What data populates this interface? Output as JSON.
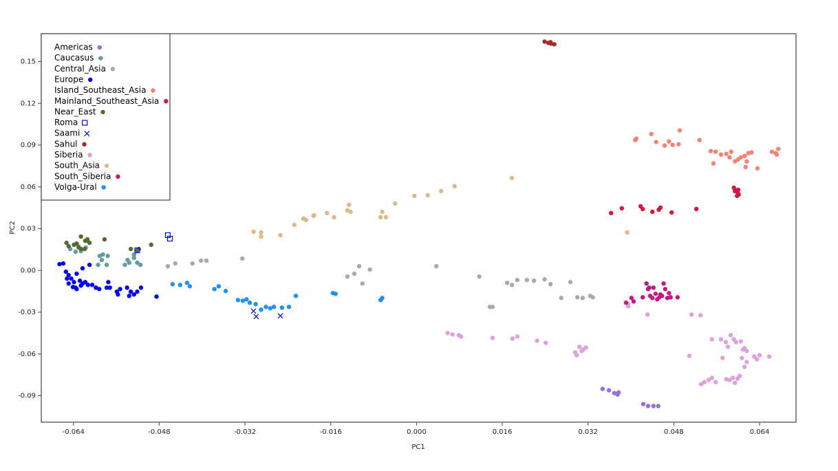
{
  "chart_data": {
    "type": "scatter",
    "x_label": "PC1",
    "y_label": "PC2",
    "xlim": [
      -0.07,
      0.0708
    ],
    "ylim": [
      -0.109,
      0.17
    ],
    "xticks": [
      -0.064,
      -0.048,
      -0.032,
      -0.016,
      {
        "value": 0,
        "label": "0.000"
      },
      0.016,
      0.032,
      0.048,
      0.064
    ],
    "yticks": [
      0.15,
      0.12,
      0.09,
      0.06,
      0.03,
      {
        "value": 0,
        "label": "0.00"
      },
      -0.03,
      -0.06,
      -0.09
    ],
    "legend": "upper left",
    "series": [
      {
        "name": "Americas",
        "color": "#9370db",
        "marker": "circle",
        "x": [
          0.0347,
          0.0359,
          0.0369,
          0.0375,
          0.0377,
          0.0423,
          0.0432,
          0.0442,
          0.0451
        ],
        "values": [
          -0.0851,
          -0.0861,
          -0.0881,
          -0.0891,
          -0.0876,
          -0.096,
          -0.0974,
          -0.0974,
          -0.0974
        ]
      },
      {
        "name": "Caucasus",
        "color": "#5f9ea0",
        "marker": "circle",
        "x": [
          -0.0646,
          -0.0636,
          -0.0626,
          -0.0617,
          -0.0631,
          -0.0594,
          -0.0587,
          -0.0578,
          -0.0591,
          -0.0585,
          -0.0576,
          -0.0544,
          -0.0536,
          -0.0527,
          -0.0521,
          -0.0515,
          -0.0539,
          -0.0527
        ],
        "values": [
          0.0154,
          0.0134,
          0.0139,
          0.0164,
          0.0174,
          0.004,
          0.0075,
          0.004,
          0.0104,
          0.0114,
          0.0104,
          0.004,
          0.0055,
          0.009,
          0.0055,
          0.004,
          0.0075,
          0.0114
        ]
      },
      {
        "name": "Central_Asia",
        "color": "#a9a9a9",
        "marker": "circle",
        "x": [
          -0.0464,
          -0.045,
          -0.0418,
          -0.0402,
          -0.0392,
          -0.0325,
          -0.0129,
          -0.0116,
          -0.0107,
          -0.0101,
          -0.0087,
          0.0037,
          0.0117,
          0.0137,
          0.0142,
          0.0169,
          0.0178,
          0.0188,
          0.0206,
          0.0219,
          0.0239,
          0.025,
          0.0287,
          0.027,
          0.03,
          0.031,
          0.0324,
          0.0329
        ],
        "values": [
          0.003,
          0.005,
          0.005,
          0.007,
          0.007,
          0.0085,
          -0.0044,
          -0.0024,
          0.003,
          -0.0094,
          0.0006,
          0.003,
          -0.0044,
          -0.0262,
          -0.0262,
          -0.0089,
          -0.0104,
          -0.0069,
          -0.0069,
          -0.0074,
          -0.0064,
          -0.0099,
          -0.0084,
          -0.0198,
          -0.0193,
          -0.0198,
          -0.0183,
          -0.0193
        ]
      },
      {
        "name": "Europe",
        "color": "#0000ff",
        "marker": "circle",
        "x": [
          -0.0666,
          -0.0659,
          -0.0654,
          -0.0649,
          -0.0644,
          -0.0639,
          -0.0634,
          -0.0628,
          -0.0623,
          -0.0618,
          -0.0613,
          -0.0605,
          -0.0598,
          -0.0592,
          -0.0649,
          -0.0641,
          -0.0634,
          -0.0626,
          -0.0652,
          -0.061,
          -0.0623,
          -0.0575,
          -0.0572,
          -0.0559,
          -0.0553,
          -0.054,
          -0.0533,
          -0.0527,
          -0.0521,
          -0.0514,
          -0.0536,
          -0.0557,
          -0.0485,
          -0.0578,
          -0.0636
        ],
        "values": [
          0.0045,
          0.005,
          -0.0009,
          -0.0034,
          -0.0059,
          -0.0084,
          -0.0024,
          -0.0074,
          -0.0094,
          -0.0084,
          -0.0104,
          -0.0104,
          -0.0124,
          -0.0134,
          -0.0094,
          -0.0119,
          -0.0134,
          -0.0109,
          -0.0059,
          0.004,
          0.0015,
          -0.0084,
          -0.0124,
          -0.0153,
          -0.0134,
          -0.0124,
          -0.0153,
          -0.0173,
          -0.0153,
          -0.0124,
          -0.0183,
          -0.0173,
          -0.0188,
          -0.0124,
          -0.0124
        ]
      },
      {
        "name": "Island_Southeast_Asia",
        "color": "#fa8072",
        "marker": "circle",
        "x": [
          0.0408,
          0.041,
          0.0438,
          0.0447,
          0.0463,
          0.0471,
          0.0478,
          0.0489,
          0.0491,
          0.0528,
          0.0549,
          0.0554,
          0.0558,
          0.0568,
          0.0578,
          0.0584,
          0.0587,
          0.0594,
          0.06,
          0.0605,
          0.0612,
          0.0616,
          0.0619,
          0.0625,
          0.0636,
          0.0663,
          0.067,
          0.0675,
          0.0672,
          0.0614
        ],
        "values": [
          0.0936,
          0.0946,
          0.098,
          0.0922,
          0.0897,
          0.0926,
          0.0902,
          0.0906,
          0.1005,
          0.0936,
          0.0857,
          0.0768,
          0.0852,
          0.0832,
          0.0837,
          0.0812,
          0.0852,
          0.0783,
          0.0797,
          0.0812,
          0.0822,
          0.0783,
          0.0842,
          0.0847,
          0.0733,
          0.0852,
          0.0842,
          0.0872,
          0.0832,
          0.0743
        ]
      },
      {
        "name": "Mainland_Southeast_Asia",
        "color": "#dc143c",
        "marker": "circle",
        "x": [
          0.0363,
          0.0383,
          0.0418,
          0.0422,
          0.044,
          0.0452,
          0.0455,
          0.0476,
          0.0522,
          0.0592,
          0.0596,
          0.0599,
          0.0601,
          0.0594,
          0.06,
          0.0598
        ],
        "values": [
          0.0412,
          0.0446,
          0.0461,
          0.0441,
          0.0421,
          0.0436,
          0.0451,
          0.0416,
          0.0441,
          0.0594,
          0.0575,
          0.056,
          0.0545,
          0.057,
          0.0579,
          0.0535
        ]
      },
      {
        "name": "Near_East",
        "color": "#556b2f",
        "marker": "circle",
        "x": [
          -0.0653,
          -0.0649,
          -0.0639,
          -0.0634,
          -0.0626,
          -0.0618,
          -0.0614,
          -0.061,
          -0.063,
          -0.0626,
          -0.0619,
          -0.0614,
          -0.0582,
          -0.0533,
          -0.0521,
          -0.0495,
          -0.0518
        ],
        "values": [
          0.0198,
          0.0174,
          0.0184,
          0.0193,
          0.0243,
          0.0213,
          0.0223,
          0.0198,
          0.0164,
          0.0154,
          0.0154,
          0.0213,
          0.0223,
          0.0154,
          0.0144,
          0.0184,
          0.0154
        ]
      },
      {
        "name": "Roma",
        "color": "#0000ff",
        "marker": "square",
        "x": [
          -0.0521,
          -0.0464,
          -0.046
        ],
        "values": [
          0.0144,
          0.0253,
          0.0228
        ]
      },
      {
        "name": "Saami",
        "color": "#0000ff",
        "marker": "x",
        "x": [
          -0.0304,
          -0.0299,
          -0.0254
        ],
        "values": [
          -0.0292,
          -0.0331,
          -0.0326
        ]
      },
      {
        "name": "Sahul",
        "color": "#a52a2a",
        "marker": "circle",
        "x": [
          0.0239,
          0.0246,
          0.0251,
          0.0257,
          0.025
        ],
        "values": [
          0.1643,
          0.1634,
          0.1629,
          0.1624,
          0.1639
        ]
      },
      {
        "name": "Siberia",
        "color": "#dda0dd",
        "marker": "circle",
        "x": [
          0.0058,
          0.0067,
          0.0079,
          0.0083,
          0.0142,
          0.0179,
          0.0188,
          0.0225,
          0.0241,
          0.0296,
          0.0304,
          0.0311,
          0.0316,
          0.0299,
          0.0308,
          0.0395,
          0.0395,
          0.0431,
          0.0513,
          0.053,
          0.0509,
          0.0531,
          0.0537,
          0.0545,
          0.0551,
          0.0558,
          0.0551,
          0.0568,
          0.0571,
          0.0577,
          0.0581,
          0.0586,
          0.0592,
          0.0596,
          0.0605,
          0.0612,
          0.0616,
          0.0607,
          0.0609,
          0.063,
          0.0635,
          0.064,
          0.0658,
          0.0584,
          0.059,
          0.0599,
          0.0594,
          0.0578,
          0.0603,
          0.0612,
          0.0616
        ],
        "values": [
          -0.045,
          -0.046,
          -0.0465,
          -0.0475,
          -0.0485,
          -0.049,
          -0.0475,
          -0.0505,
          -0.052,
          -0.0589,
          -0.0549,
          -0.0569,
          -0.0554,
          -0.0609,
          -0.0579,
          -0.0243,
          -0.0258,
          -0.0317,
          -0.0317,
          -0.0322,
          -0.0614,
          -0.0817,
          -0.0802,
          -0.0787,
          -0.0772,
          -0.0802,
          -0.0495,
          -0.0495,
          -0.0629,
          -0.0515,
          -0.0549,
          -0.0465,
          -0.0495,
          -0.0515,
          -0.051,
          -0.0559,
          -0.0579,
          -0.0629,
          -0.0569,
          -0.0619,
          -0.0638,
          -0.0609,
          -0.0619,
          -0.0787,
          -0.0772,
          -0.0777,
          -0.0807,
          -0.0782,
          -0.0757,
          -0.0693,
          -0.0658
        ]
      },
      {
        "name": "South_Asia",
        "color": "#deb887",
        "marker": "circle",
        "x": [
          -0.0304,
          -0.029,
          -0.029,
          -0.0254,
          -0.0228,
          -0.0211,
          -0.0206,
          -0.0192,
          -0.0191,
          -0.0167,
          -0.0154,
          -0.0129,
          -0.0126,
          -0.0123,
          -0.0067,
          -0.0064,
          -0.0057,
          -0.004,
          -0.0004,
          0.0021,
          0.0046,
          0.0071,
          0.0178,
          0.0393
        ],
        "values": [
          0.0278,
          0.0273,
          0.0243,
          0.0253,
          0.0327,
          0.0372,
          0.0362,
          0.0392,
          0.0396,
          0.0412,
          0.0382,
          0.0431,
          0.0471,
          0.0421,
          0.0382,
          0.0421,
          0.0382,
          0.0481,
          0.0535,
          0.054,
          0.057,
          0.0604,
          0.0664,
          0.0273
        ]
      },
      {
        "name": "South_Siberia",
        "color": "#c71585",
        "marker": "circle",
        "x": [
          0.0391,
          0.0401,
          0.0405,
          0.0422,
          0.0429,
          0.0432,
          0.0436,
          0.044,
          0.0442,
          0.0446,
          0.0449,
          0.0453,
          0.0458,
          0.0461,
          0.0464,
          0.0468,
          0.0471,
          0.0474,
          0.0487,
          0.0455,
          0.0434
        ],
        "values": [
          -0.0232,
          -0.0198,
          -0.0223,
          -0.0193,
          -0.0094,
          -0.0134,
          -0.0183,
          -0.0198,
          -0.0124,
          -0.0168,
          -0.0208,
          -0.0193,
          -0.0183,
          -0.0094,
          -0.0134,
          -0.0198,
          -0.0163,
          -0.0193,
          -0.0193,
          -0.0173,
          -0.0124
        ]
      },
      {
        "name": "Volga-Ural",
        "color": "#1e90ff",
        "marker": "circle",
        "x": [
          -0.0455,
          -0.0441,
          -0.0428,
          -0.0423,
          -0.0377,
          -0.0369,
          -0.0356,
          -0.0333,
          -0.0324,
          -0.0317,
          -0.0311,
          -0.03,
          -0.029,
          -0.0281,
          -0.0273,
          -0.0266,
          -0.0251,
          -0.0238,
          -0.0225,
          -0.0156,
          -0.0151,
          -0.0067,
          -0.0064
        ],
        "values": [
          -0.0099,
          -0.0104,
          -0.0089,
          -0.0114,
          -0.0134,
          -0.0114,
          -0.0148,
          -0.0213,
          -0.0218,
          -0.0208,
          -0.0232,
          -0.0242,
          -0.0282,
          -0.0262,
          -0.0272,
          -0.0262,
          -0.0267,
          -0.0262,
          -0.0183,
          -0.0163,
          -0.0168,
          -0.0213,
          -0.0198
        ]
      }
    ]
  }
}
